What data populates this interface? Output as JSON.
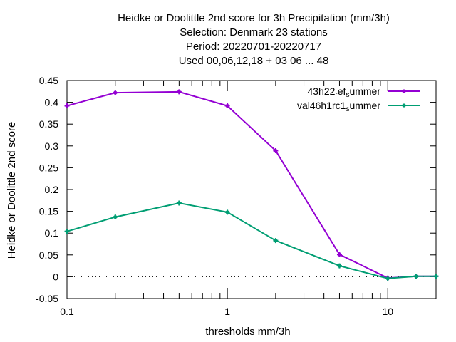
{
  "chart_data": {
    "type": "line",
    "title_lines": [
      "Heidke or Doolittle 2nd score  for 3h Precipitation (mm/3h)",
      "Selection: Denmark     23 stations",
      "Period: 20220701-20220717",
      "Used  00,06,12,18  + 03 06 ... 48"
    ],
    "xlabel": "thresholds mm/3h",
    "ylabel": "Heidke or Doolittle 2nd score",
    "x_scale": "log",
    "xlim": [
      0.1,
      20
    ],
    "ylim": [
      -0.05,
      0.45
    ],
    "x_ticks": [
      0.1,
      1,
      10
    ],
    "x_tick_labels": [
      "0.1",
      "1",
      "10"
    ],
    "y_ticks": [
      -0.05,
      0,
      0.05,
      0.1,
      0.15,
      0.2,
      0.25,
      0.3,
      0.35,
      0.4,
      0.45
    ],
    "y_tick_labels": [
      "-0.05",
      "0",
      "0.05",
      "0.1",
      "0.15",
      "0.2",
      "0.25",
      "0.3",
      "0.35",
      "0.4",
      "0.45"
    ],
    "grid": false,
    "legend_position": "top-right",
    "series": [
      {
        "name": "43h22_ref_summer",
        "legend_parts": [
          "43h22",
          "r",
          "ef",
          "s",
          "ummer"
        ],
        "color": "#9400d3",
        "x": [
          0.1,
          0.2,
          0.5,
          1,
          2,
          5,
          10,
          15,
          20
        ],
        "y": [
          0.392,
          0.422,
          0.424,
          0.392,
          0.289,
          0.051,
          -0.003,
          0.001,
          0.001
        ]
      },
      {
        "name": "val46h1rc1_summer",
        "legend_parts": [
          "val46h1rc1",
          "s",
          "ummer"
        ],
        "color": "#009e73",
        "x": [
          0.1,
          0.2,
          0.5,
          1,
          2,
          5,
          10,
          15,
          20
        ],
        "y": [
          0.104,
          0.137,
          0.169,
          0.148,
          0.083,
          0.025,
          -0.004,
          0.001,
          0.001
        ]
      }
    ]
  }
}
